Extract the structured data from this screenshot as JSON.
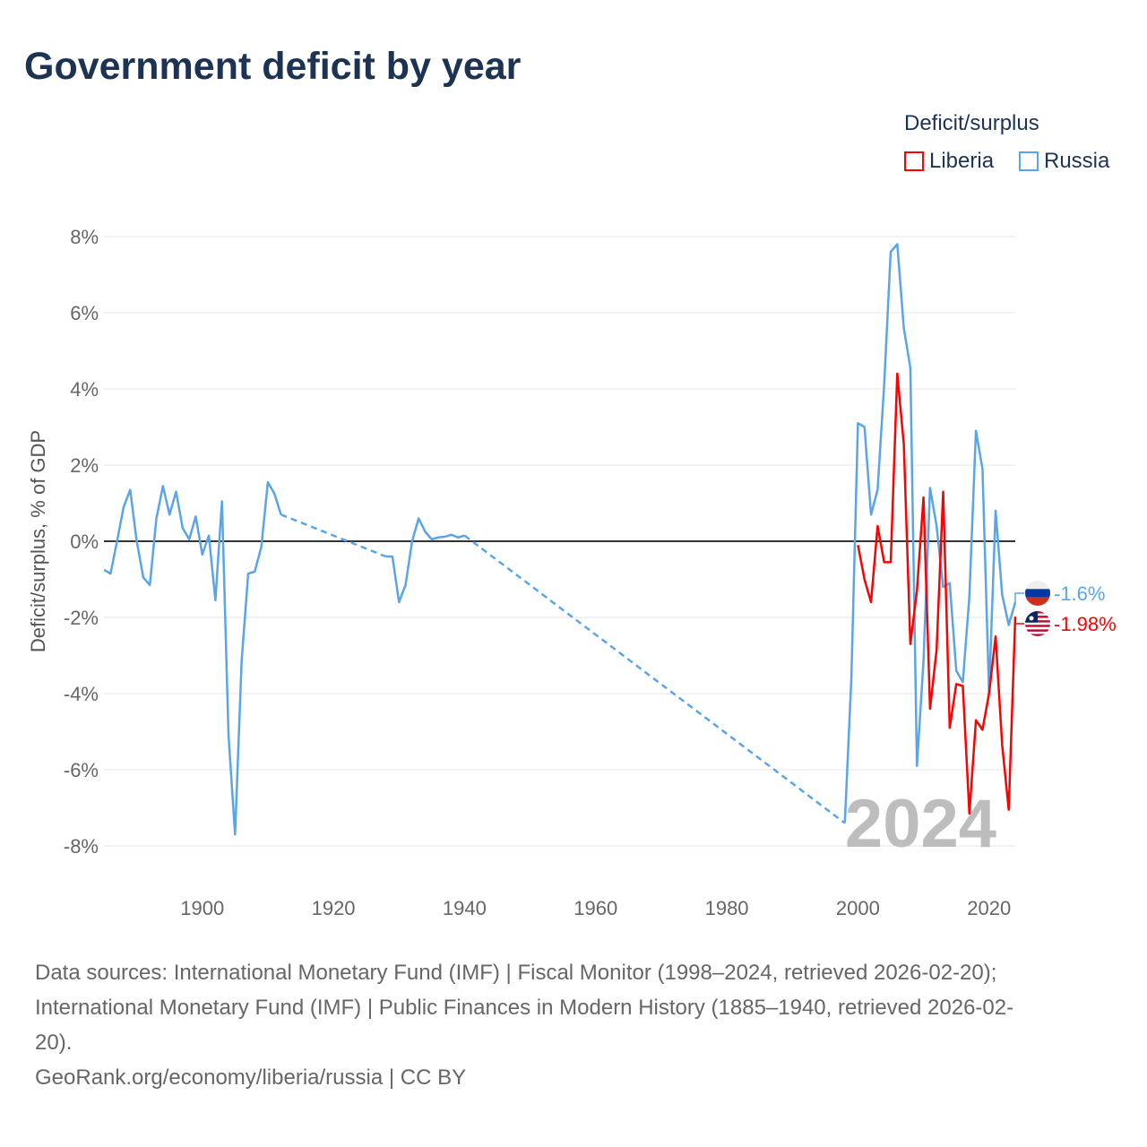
{
  "title": "Government deficit by year",
  "legend_title": "Deficit/surplus",
  "colors": {
    "Liberia": "#ff0000",
    "Russia": "#5aa5ea"
  },
  "footer": {
    "line1": "Data sources: International Monetary Fund (IMF) | Fiscal Monitor (1998–2024, retrieved 2026-02-20);",
    "line2": "International Monetary Fund (IMF) | Public Finances in Modern History (1885–1940, retrieved 2026-02-",
    "line3": "20).",
    "line4": "GeoRank.org/economy/liberia/russia | CC BY"
  },
  "chart_data": {
    "type": "line",
    "title": "Government deficit by year",
    "xlabel": "",
    "ylabel": "Deficit/surplus, % of GDP",
    "xlim": [
      1885,
      2024
    ],
    "ylim": [
      -8,
      8
    ],
    "x_ticks": [
      "1900",
      "1920",
      "1940",
      "1960",
      "1980",
      "2000",
      "2020"
    ],
    "y_ticks": [
      "8%",
      "6%",
      "4%",
      "2%",
      "0%",
      "-2%",
      "-4%",
      "-6%",
      "-8%"
    ],
    "year_watermark": "2024",
    "legend": [
      "Liberia",
      "Russia"
    ],
    "legend_position": "top-right",
    "series": [
      {
        "name": "Russia",
        "end_label": "-1.6%",
        "points": [
          [
            1885,
            -0.75
          ],
          [
            1886,
            -0.85
          ],
          [
            1887,
            0.0
          ],
          [
            1888,
            0.9
          ],
          [
            1889,
            1.35
          ],
          [
            1890,
            0.0
          ],
          [
            1891,
            -0.95
          ],
          [
            1892,
            -1.15
          ],
          [
            1893,
            0.6
          ],
          [
            1894,
            1.45
          ],
          [
            1895,
            0.7
          ],
          [
            1896,
            1.3
          ],
          [
            1897,
            0.35
          ],
          [
            1898,
            0.05
          ],
          [
            1899,
            0.65
          ],
          [
            1900,
            -0.35
          ],
          [
            1901,
            0.15
          ],
          [
            1902,
            -1.55
          ],
          [
            1903,
            1.05
          ],
          [
            1904,
            -5.1
          ],
          [
            1905,
            -7.7
          ],
          [
            1906,
            -3.15
          ],
          [
            1907,
            -0.85
          ],
          [
            1908,
            -0.8
          ],
          [
            1909,
            -0.15
          ],
          [
            1910,
            1.55
          ],
          [
            1911,
            1.25
          ],
          [
            1912,
            0.7
          ],
          [
            1928,
            -0.4
          ],
          [
            1929,
            -0.4
          ],
          [
            1930,
            -1.6
          ],
          [
            1931,
            -1.15
          ],
          [
            1932,
            0.0
          ],
          [
            1933,
            0.6
          ],
          [
            1934,
            0.25
          ],
          [
            1935,
            0.05
          ],
          [
            1936,
            0.1
          ],
          [
            1937,
            0.12
          ],
          [
            1938,
            0.17
          ],
          [
            1939,
            0.1
          ],
          [
            1940,
            0.15
          ],
          [
            1998,
            -7.4
          ],
          [
            1999,
            -3.6
          ],
          [
            2000,
            3.1
          ],
          [
            2001,
            3.0
          ],
          [
            2002,
            0.7
          ],
          [
            2003,
            1.35
          ],
          [
            2004,
            4.1
          ],
          [
            2005,
            7.6
          ],
          [
            2006,
            7.8
          ],
          [
            2007,
            5.6
          ],
          [
            2008,
            4.55
          ],
          [
            2009,
            -5.9
          ],
          [
            2010,
            -3.15
          ],
          [
            2011,
            1.4
          ],
          [
            2012,
            0.4
          ],
          [
            2013,
            -1.2
          ],
          [
            2014,
            -1.1
          ],
          [
            2015,
            -3.4
          ],
          [
            2016,
            -3.7
          ],
          [
            2017,
            -1.45
          ],
          [
            2018,
            2.9
          ],
          [
            2019,
            1.9
          ],
          [
            2020,
            -4.0
          ],
          [
            2021,
            0.8
          ],
          [
            2022,
            -1.4
          ],
          [
            2023,
            -2.2
          ],
          [
            2024,
            -1.6
          ]
        ]
      },
      {
        "name": "Liberia",
        "end_label": "-1.98%",
        "points": [
          [
            2000,
            -0.1
          ],
          [
            2001,
            -1.0
          ],
          [
            2002,
            -1.6
          ],
          [
            2003,
            0.4
          ],
          [
            2004,
            -0.55
          ],
          [
            2005,
            -0.55
          ],
          [
            2006,
            4.4
          ],
          [
            2007,
            2.55
          ],
          [
            2008,
            -2.7
          ],
          [
            2009,
            -1.3
          ],
          [
            2010,
            1.15
          ],
          [
            2011,
            -4.4
          ],
          [
            2012,
            -2.85
          ],
          [
            2013,
            1.3
          ],
          [
            2014,
            -4.9
          ],
          [
            2015,
            -3.75
          ],
          [
            2016,
            -3.8
          ],
          [
            2017,
            -7.15
          ],
          [
            2018,
            -4.7
          ],
          [
            2019,
            -4.95
          ],
          [
            2020,
            -4.0
          ],
          [
            2021,
            -2.5
          ],
          [
            2022,
            -5.35
          ],
          [
            2023,
            -7.05
          ],
          [
            2024,
            -1.98
          ]
        ]
      }
    ]
  }
}
